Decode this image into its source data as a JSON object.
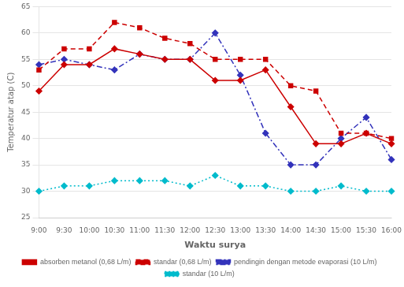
{
  "chart_data": {
    "type": "line",
    "categories": [
      "9:00",
      "9:30",
      "10:00",
      "10:30",
      "11:00",
      "11:30",
      "12:00",
      "12:30",
      "13:00",
      "13:30",
      "14:00",
      "14:30",
      "15:00",
      "15:30",
      "16:00"
    ],
    "series": [
      {
        "name": "absorben metanol (0,68 L/m)",
        "color": "#cc0000",
        "marker": "diamond",
        "line_style": "solid",
        "values": [
          49,
          54,
          54,
          57,
          56,
          55,
          55,
          51,
          51,
          53,
          46,
          39,
          39,
          41,
          39
        ]
      },
      {
        "name": "standar (0,68 L/m)",
        "color": "#cc0000",
        "marker": "square",
        "line_style": "dashed",
        "values": [
          53,
          57,
          57,
          62,
          61,
          59,
          58,
          55,
          55,
          55,
          50,
          49,
          41,
          41,
          40
        ]
      },
      {
        "name": "pendingin dengan metode evaporasi (10 L/m)",
        "color": "#3333bb",
        "marker": "diamond",
        "line_style": "dashdot",
        "values": [
          54,
          55,
          54,
          53,
          56,
          55,
          55,
          60,
          52,
          41,
          35,
          35,
          40,
          44,
          36
        ]
      },
      {
        "name": "standar (10 L/m)",
        "color": "#00bbcc",
        "marker": "diamond",
        "line_style": "dotted",
        "values": [
          30,
          31,
          31,
          32,
          32,
          32,
          31,
          33,
          31,
          31,
          30,
          30,
          31,
          30,
          30
        ]
      }
    ],
    "xlabel": "Waktu surya",
    "ylabel": "Temperatur atap (C)",
    "ylim": [
      25,
      65
    ],
    "yticks": [
      25,
      30,
      35,
      40,
      45,
      50,
      55,
      60,
      65
    ],
    "grid": true,
    "legend": "bottom"
  }
}
